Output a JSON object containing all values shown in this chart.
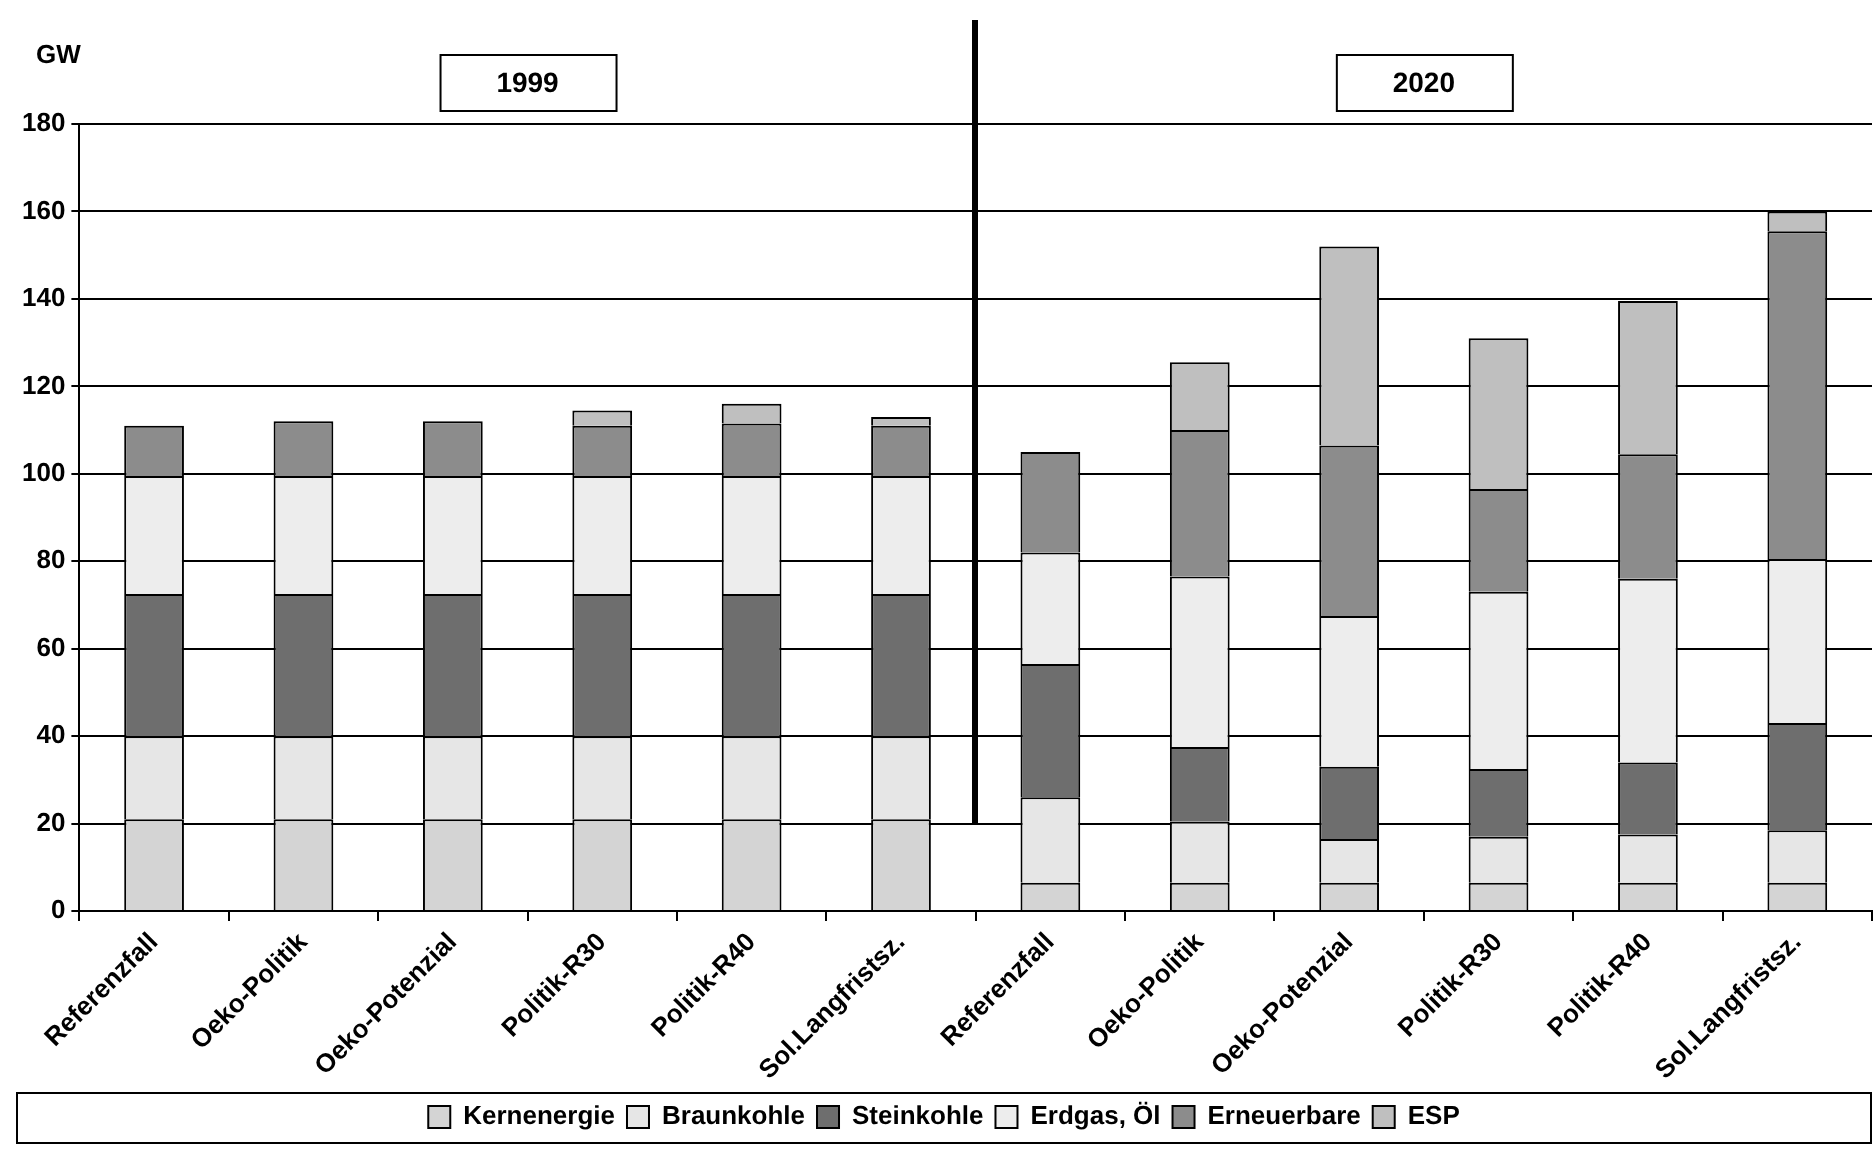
{
  "chart_data": {
    "type": "bar",
    "stacked": true,
    "ylabel": "GW",
    "categories": [
      "Referenzfall",
      "Oeko-Politik",
      "Oeko-Potenzial",
      "Politik-R30",
      "Politik-R40",
      "Sol.Langfristsz.",
      "Referenzfall",
      "Oeko-Politik",
      "Oeko-Potenzial",
      "Politik-R30",
      "Politik-R40",
      "Sol.Langfristsz."
    ],
    "series": [
      {
        "name": "Kernenergie",
        "color": "#d4d4d4",
        "values": [
          21,
          21,
          21,
          21,
          21,
          21,
          6.5,
          6.5,
          6.5,
          6.5,
          6.5,
          6.5
        ]
      },
      {
        "name": "Braunkohle",
        "color": "#e6e6e6",
        "values": [
          19,
          19,
          19,
          19,
          19,
          19,
          19.5,
          14,
          10,
          10.5,
          11,
          12
        ]
      },
      {
        "name": "Steinkohle",
        "color": "#6e6e6e",
        "values": [
          32.5,
          32.5,
          32.5,
          32.5,
          32.5,
          32.5,
          30.5,
          17,
          16.5,
          15.5,
          16.5,
          24.5
        ]
      },
      {
        "name": "Erdgas, Öl",
        "color": "#ededed",
        "values": [
          27,
          27,
          27,
          27,
          27,
          27,
          25.5,
          39,
          34.5,
          40.5,
          42,
          37.5
        ]
      },
      {
        "name": "Erneuerbare",
        "color": "#8c8c8c",
        "values": [
          11.5,
          12.5,
          12.5,
          11.5,
          12,
          11.5,
          23,
          33.5,
          39,
          23.5,
          28.5,
          75
        ]
      },
      {
        "name": "ESP",
        "color": "#bfbfbf",
        "values": [
          0,
          0,
          0,
          3.5,
          4.5,
          2,
          0,
          15.5,
          45.5,
          34.5,
          35,
          4.5
        ]
      }
    ],
    "ylim": [
      0,
      180
    ],
    "yticks": [
      0,
      20,
      40,
      60,
      80,
      100,
      120,
      140,
      160,
      180
    ],
    "grid": "y",
    "legend": "bottom",
    "annotations": [
      "1999",
      "2020"
    ]
  }
}
